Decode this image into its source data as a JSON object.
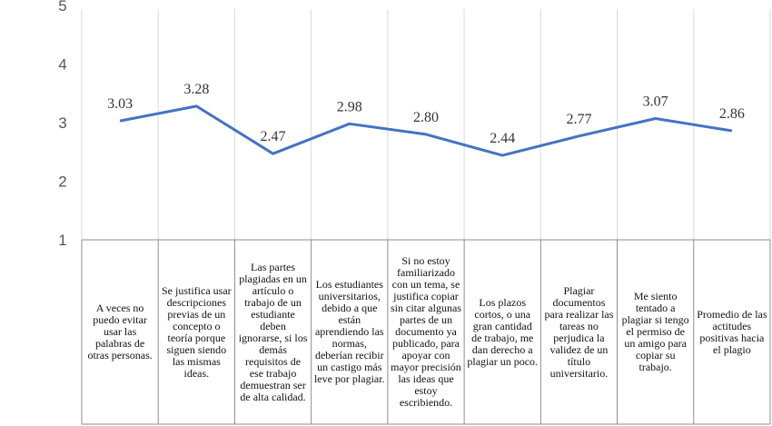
{
  "chart_data": {
    "type": "line",
    "ylim": [
      1,
      5
    ],
    "yticks": [
      "1",
      "2",
      "3",
      "4",
      "5"
    ],
    "grid": {
      "horizontal": false,
      "vertical": true
    },
    "legend": "none",
    "line_color": "#4472C4",
    "categories": [
      "A veces no puedo evitar usar las palabras de otras personas.",
      "Se justifica usar descripciones previas de un concepto o teoría porque siguen siendo las mismas ideas.",
      "Las partes plagiadas en un artículo o trabajo de un estudiante deben ignorarse, si los demás requisitos de ese trabajo demuestran ser de alta calidad.",
      "Los estudiantes universitarios, debido a que están aprendiendo las normas, deberían recibir un castigo más leve por plagiar.",
      "Si no estoy familiarizado con un tema, se justifica copiar sin citar algunas partes de un documento ya publicado, para apoyar con mayor precisión las ideas que estoy escribiendo.",
      "Los plazos cortos, o una gran cantidad de trabajo, me dan derecho a plagiar un poco.",
      "Plagiar documentos para realizar las tareas no perjudica la validez de un título universitario.",
      "Me siento tentado a plagiar si tengo el permiso de un amigo para copiar su trabajo.",
      "Promedio de las actitudes positivas hacia el plagio"
    ],
    "values": [
      3.03,
      3.28,
      2.47,
      2.98,
      2.8,
      2.44,
      2.77,
      3.07,
      2.86
    ],
    "value_labels": [
      "3.03",
      "3.28",
      "2.47",
      "2.98",
      "2.80",
      "2.44",
      "2.77",
      "3.07",
      "2.86"
    ]
  }
}
